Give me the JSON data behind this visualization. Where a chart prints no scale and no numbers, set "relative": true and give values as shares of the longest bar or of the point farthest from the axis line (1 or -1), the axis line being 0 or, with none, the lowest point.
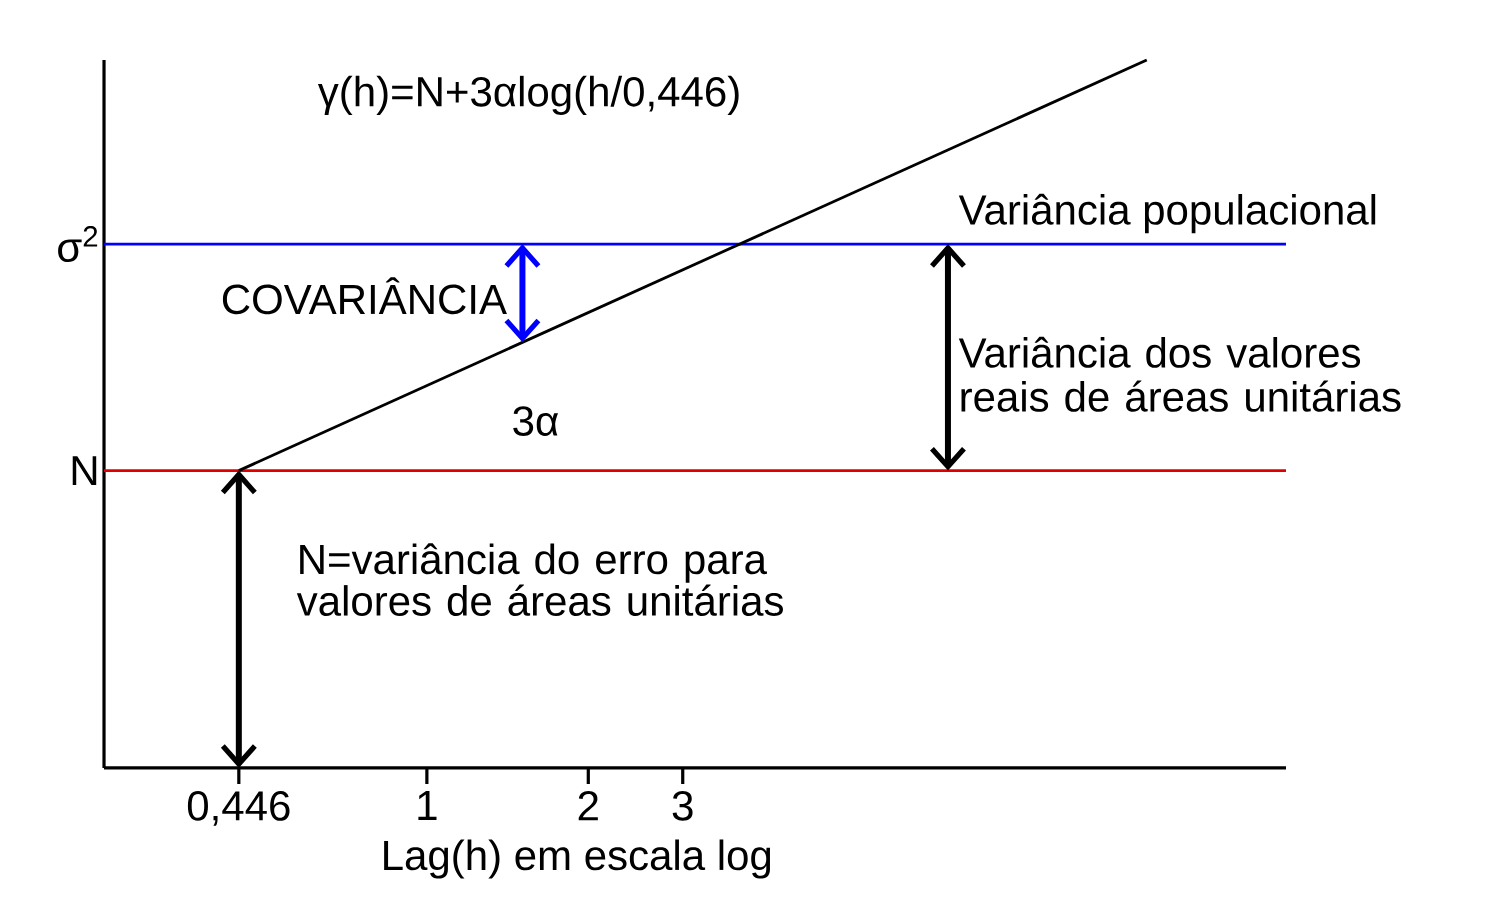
{
  "chart_data": {
    "type": "line",
    "relative": true,
    "log": "x",
    "xlabel": "Lag(h) em escala log",
    "xlim": [
      0.25,
      40
    ],
    "xticks": [
      {
        "value": 0.446,
        "label": "0,446"
      },
      1,
      2,
      3
    ],
    "marker": "none",
    "line_style": "solid",
    "series": [
      {
        "color": "#000000",
        "x": [
          0.446,
          22
        ],
        "values": [
          0.42,
          1
        ]
      }
    ],
    "ref_lines": [
      {
        "axis": "y",
        "value": 0.42,
        "label": "N",
        "color": "#e00000"
      },
      {
        "axis": "y",
        "value": 0.74,
        "label": "σ$^{2}$",
        "color": "#0000ff"
      }
    ],
    "annotations": [
      "γ(h)=N+3αlog(h/0,446)",
      "COVARIÂNCIA",
      "3α",
      "Variância populacional",
      "Variância dos valores reais de áreas unitárias",
      "N=variância do erro para valores de áreas unitárias"
    ]
  }
}
